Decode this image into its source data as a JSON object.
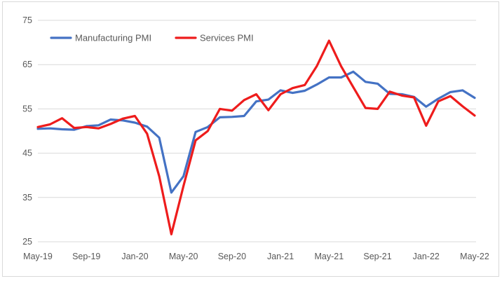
{
  "chart_data": {
    "type": "line",
    "title": "",
    "xlabel": "",
    "ylabel": "",
    "ylim": [
      25,
      75
    ],
    "y_ticks": [
      25,
      35,
      45,
      55,
      65,
      75
    ],
    "x": [
      "May-19",
      "Jun-19",
      "Jul-19",
      "Aug-19",
      "Sep-19",
      "Oct-19",
      "Nov-19",
      "Dec-19",
      "Jan-20",
      "Feb-20",
      "Mar-20",
      "Apr-20",
      "May-20",
      "Jun-20",
      "Jul-20",
      "Aug-20",
      "Sep-20",
      "Oct-20",
      "Nov-20",
      "Dec-20",
      "Jan-21",
      "Feb-21",
      "Mar-21",
      "Apr-21",
      "May-21",
      "Jun-21",
      "Jul-21",
      "Aug-21",
      "Sep-21",
      "Oct-21",
      "Nov-21",
      "Dec-21",
      "Jan-22",
      "Feb-22",
      "Mar-22",
      "Apr-22",
      "May-22"
    ],
    "x_tick_labels": [
      "May-19",
      "Sep-19",
      "Jan-20",
      "May-20",
      "Sep-20",
      "Jan-21",
      "May-21",
      "Sep-21",
      "Jan-22",
      "May-22"
    ],
    "grid": "horizontal",
    "legend_position": "top-left",
    "series": [
      {
        "name": "Manufacturing PMI",
        "color": "#4472c4",
        "values": [
          50.5,
          50.6,
          50.4,
          50.3,
          51.1,
          51.3,
          52.6,
          52.4,
          51.9,
          51.0,
          48.5,
          36.1,
          39.8,
          49.8,
          50.9,
          53.1,
          53.2,
          53.4,
          56.7,
          57.1,
          59.2,
          58.6,
          59.1,
          60.5,
          62.1,
          62.1,
          63.4,
          61.1,
          60.7,
          58.4,
          58.3,
          57.7,
          55.5,
          57.3,
          58.8,
          59.2,
          57.5
        ]
      },
      {
        "name": "Services PMI",
        "color": "#ee1c1c",
        "values": [
          50.9,
          51.5,
          52.9,
          50.7,
          50.9,
          50.6,
          51.6,
          52.8,
          53.4,
          49.4,
          39.8,
          26.7,
          37.6,
          47.9,
          50.0,
          55.0,
          54.6,
          57.0,
          58.3,
          54.7,
          58.3,
          59.7,
          60.4,
          64.7,
          70.4,
          64.6,
          59.9,
          55.2,
          55.0,
          58.9,
          58.0,
          57.6,
          51.2,
          56.7,
          57.9,
          55.6,
          53.5
        ]
      }
    ]
  }
}
